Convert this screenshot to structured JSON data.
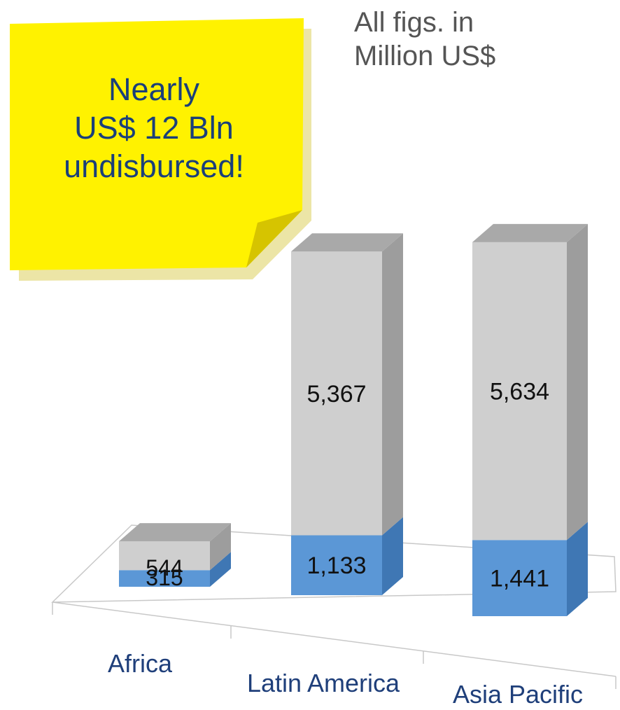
{
  "units_note": [
    "All figs. in",
    "Million US$"
  ],
  "callout": [
    "Nearly",
    "US$ 12 Bln",
    "undisbursed!"
  ],
  "colors": {
    "lower_front": "#5b97d6",
    "lower_side": "#3f77b4",
    "upper_front": "#cfcfcf",
    "upper_side": "#9d9d9d",
    "top_face": "#a9a9a9",
    "callout_fill": "#fff200",
    "callout_shadow": "#c9b400",
    "label_color": "#1f3f7a"
  },
  "chart_data": {
    "type": "bar",
    "stacked": true,
    "three_d": true,
    "categories": [
      "Africa",
      "Latin America",
      "Asia Pacific"
    ],
    "series": [
      {
        "values": [
          315,
          1133,
          1441
        ],
        "labels": [
          "315",
          "1,133",
          "1,441"
        ],
        "color": "#5b97d6"
      },
      {
        "values": [
          544,
          5367,
          5634
        ],
        "labels": [
          "544",
          "5,367",
          "5,634"
        ],
        "color": "#cfcfcf"
      }
    ],
    "legend": "none",
    "grid": false
  }
}
